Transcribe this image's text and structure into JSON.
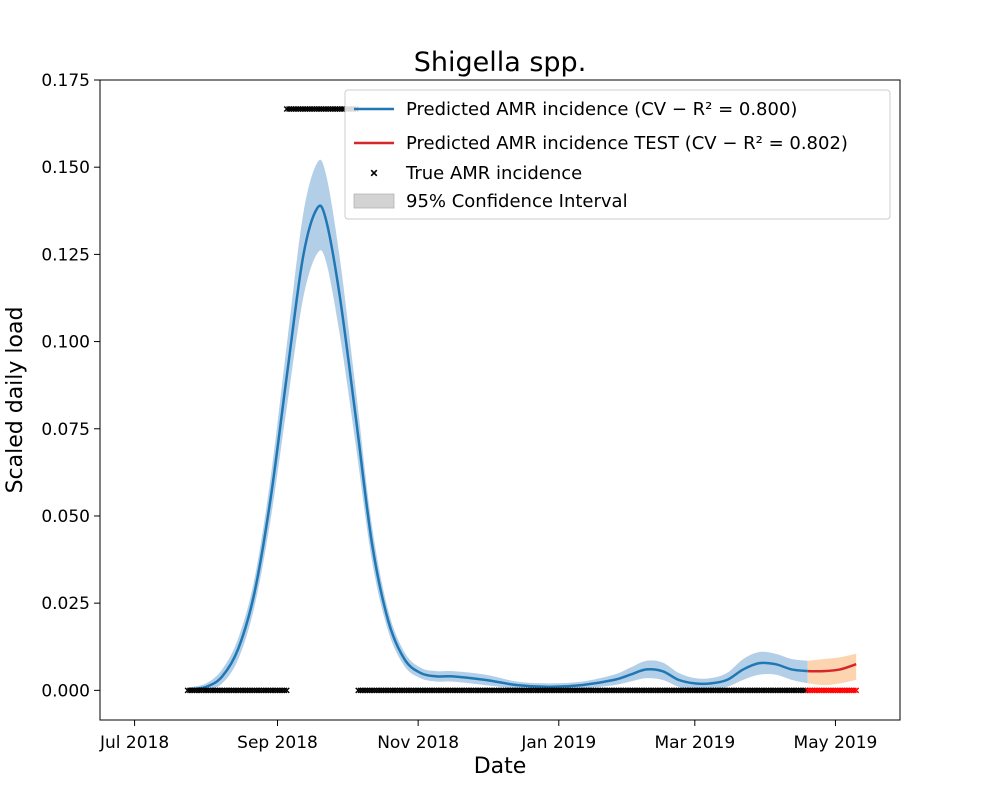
{
  "chart_data": {
    "type": "line",
    "title": "Shigella spp.",
    "xlabel": "Date",
    "ylabel": "Scaled daily load",
    "xlim": [
      "2018-06-16",
      "2019-05-29"
    ],
    "ylim": [
      -0.0085,
      0.175
    ],
    "x_ticks": [
      "2018-07-01",
      "2018-09-01",
      "2018-11-01",
      "2019-01-01",
      "2019-03-01",
      "2019-05-01"
    ],
    "x_tick_labels": [
      "Jul 2018",
      "Sep 2018",
      "Nov 2018",
      "Jan 2019",
      "Mar 2019",
      "May 2019"
    ],
    "y_ticks": [
      0.0,
      0.025,
      0.05,
      0.075,
      0.1,
      0.125,
      0.15,
      0.175
    ],
    "y_tick_labels": [
      "0.000",
      "0.025",
      "0.050",
      "0.075",
      "0.100",
      "0.125",
      "0.150",
      "0.175"
    ],
    "grid": false,
    "legend_position": "top-right",
    "legend": [
      {
        "label": "Predicted AMR incidence (CV − R² = 0.800)",
        "color": "#1f77b4",
        "kind": "line"
      },
      {
        "label": "Predicted AMR incidence TEST (CV − R² = 0.802)",
        "color": "#d62728",
        "kind": "line"
      },
      {
        "label": "True AMR incidence",
        "color": "#000000",
        "kind": "marker"
      },
      {
        "label": "95% Confidence Interval",
        "color": "#d3d3d3",
        "kind": "patch"
      }
    ],
    "series": [
      {
        "name": "Predicted AMR incidence",
        "color": "#1f77b4",
        "band_color": "#b3cfe8",
        "x": [
          "2018-07-24",
          "2018-08-01",
          "2018-08-08",
          "2018-08-15",
          "2018-08-22",
          "2018-08-29",
          "2018-09-05",
          "2018-09-12",
          "2018-09-18",
          "2018-09-22",
          "2018-09-28",
          "2018-10-05",
          "2018-10-12",
          "2018-10-19",
          "2018-10-26",
          "2018-11-02",
          "2018-11-09",
          "2018-11-16",
          "2018-11-30",
          "2018-12-14",
          "2018-12-28",
          "2019-01-11",
          "2019-01-25",
          "2019-02-01",
          "2019-02-08",
          "2019-02-15",
          "2019-02-22",
          "2019-03-01",
          "2019-03-08",
          "2019-03-15",
          "2019-03-22",
          "2019-03-29",
          "2019-04-05",
          "2019-04-12",
          "2019-04-19"
        ],
        "values": [
          0.0003,
          0.001,
          0.004,
          0.012,
          0.028,
          0.055,
          0.09,
          0.124,
          0.138,
          0.135,
          0.113,
          0.078,
          0.042,
          0.02,
          0.009,
          0.005,
          0.004,
          0.004,
          0.003,
          0.0015,
          0.001,
          0.0015,
          0.003,
          0.0045,
          0.006,
          0.0055,
          0.003,
          0.002,
          0.002,
          0.003,
          0.006,
          0.0078,
          0.0075,
          0.006,
          0.0055
        ],
        "lower": [
          0.0,
          0.0,
          0.002,
          0.009,
          0.024,
          0.049,
          0.081,
          0.112,
          0.125,
          0.123,
          0.102,
          0.07,
          0.037,
          0.017,
          0.007,
          0.0035,
          0.0025,
          0.0025,
          0.0015,
          0.0005,
          0.0,
          0.0005,
          0.0015,
          0.0025,
          0.0035,
          0.003,
          0.001,
          0.0,
          0.0,
          0.001,
          0.003,
          0.0045,
          0.0045,
          0.003,
          0.002
        ],
        "upper": [
          0.0008,
          0.002,
          0.006,
          0.015,
          0.032,
          0.061,
          0.099,
          0.136,
          0.151,
          0.148,
          0.124,
          0.086,
          0.047,
          0.023,
          0.011,
          0.0065,
          0.0055,
          0.0055,
          0.0045,
          0.0025,
          0.002,
          0.0025,
          0.0045,
          0.0065,
          0.0085,
          0.008,
          0.005,
          0.0035,
          0.0035,
          0.005,
          0.009,
          0.011,
          0.0105,
          0.009,
          0.0085
        ]
      },
      {
        "name": "Predicted AMR incidence TEST",
        "color": "#d62728",
        "band_color": "#fcd4b0",
        "x": [
          "2019-04-19",
          "2019-04-26",
          "2019-05-03",
          "2019-05-10"
        ],
        "values": [
          0.0055,
          0.0055,
          0.006,
          0.0075
        ],
        "lower": [
          0.002,
          0.0015,
          0.002,
          0.003
        ],
        "upper": [
          0.0085,
          0.009,
          0.0095,
          0.0105
        ]
      }
    ],
    "true_incidence": [
      {
        "color": "#000000",
        "x_start": "2018-07-24",
        "x_end": "2018-09-05",
        "value": 0.0
      },
      {
        "color": "#000000",
        "x_start": "2018-09-05",
        "x_end": "2018-10-05",
        "value": 0.1667
      },
      {
        "color": "#000000",
        "x_start": "2018-10-06",
        "x_end": "2019-04-18",
        "value": 0.0
      },
      {
        "color": "#ff0000",
        "x_start": "2019-04-19",
        "x_end": "2019-05-10",
        "value": 0.0
      }
    ]
  }
}
